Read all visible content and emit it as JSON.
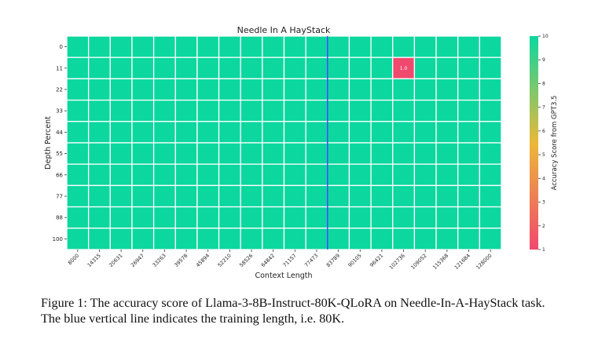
{
  "chart_data": {
    "type": "heatmap",
    "title": "Needle In A HayStack",
    "xlabel": "Context Length",
    "ylabel": "Depth Percent",
    "x_categories": [
      "8000",
      "14315",
      "20631",
      "26947",
      "33263",
      "39578",
      "45894",
      "52210",
      "58526",
      "64842",
      "71157",
      "77473",
      "83789",
      "90105",
      "96421",
      "102736",
      "109052",
      "115368",
      "121684",
      "128000"
    ],
    "y_categories": [
      "0",
      "11",
      "22",
      "33",
      "44",
      "55",
      "66",
      "77",
      "88",
      "100"
    ],
    "default_value": 10,
    "exceptions": [
      {
        "x": "102736",
        "y": "11",
        "value": 1.0,
        "label": "1.0"
      }
    ],
    "colorbar": {
      "label": "Accuracy Score from GPT3.5",
      "range": [
        1,
        10
      ],
      "ticks": [
        "1",
        "2",
        "3",
        "4",
        "5",
        "6",
        "7",
        "8",
        "9",
        "10"
      ],
      "colors": [
        "#F0496E",
        "#EBB839",
        "#0CD79F"
      ]
    },
    "reference_line": {
      "x_between": [
        "77473",
        "83789"
      ],
      "color": "#1f1fff",
      "meaning": "training length"
    }
  },
  "caption": {
    "line1": "Figure 1: The accuracy score of Llama-3-8B-Instruct-80K-QLoRA on Needle-In-A-HayStack task.",
    "line2": "The blue vertical line indicates the training length, i.e. 80K."
  }
}
